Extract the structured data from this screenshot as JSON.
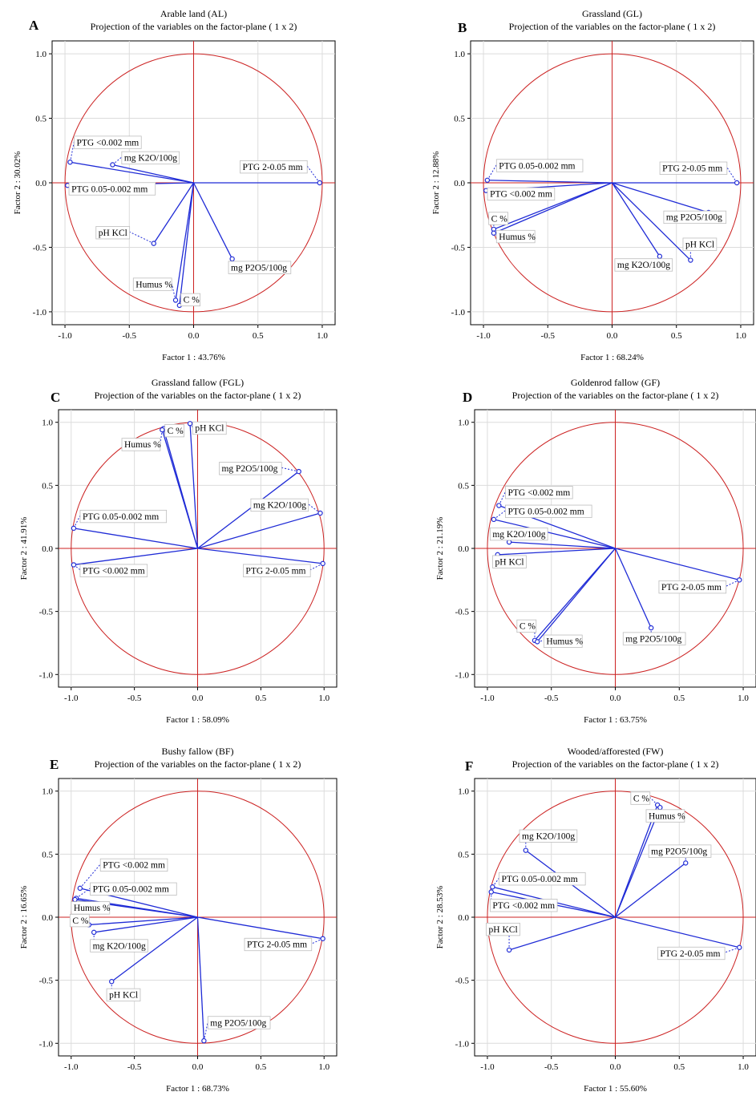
{
  "chart_data": [
    {
      "type": "scatter",
      "letter": "A",
      "title": "Arable land (AL)",
      "subtitle": "Projection of the variables on the factor-plane ( 1 x 2)",
      "xlabel": "Factor 1 : 43.76%",
      "ylabel": "Factor 2 : 30.02%",
      "xlim": [
        -1.1,
        1.1
      ],
      "ylim": [
        -1.1,
        1.1
      ],
      "xticks": [
        "-1.0",
        "-0.5",
        "0.0",
        "0.5",
        "1.0"
      ],
      "yticks": [
        "1.0",
        "0.5",
        "0.0",
        "-0.5",
        "-1.0"
      ],
      "grid": true,
      "points": [
        {
          "label": "PTG <0.002 mm",
          "x": -0.96,
          "y": 0.16,
          "label_x": -0.91,
          "label_y": 0.29
        },
        {
          "label": "mg K2O/100g",
          "x": -0.63,
          "y": 0.14,
          "label_x": -0.54,
          "label_y": 0.17
        },
        {
          "label": "PTG 0.05-0.002 mm",
          "x": -0.98,
          "y": -0.02,
          "label_x": -0.95,
          "label_y": -0.07
        },
        {
          "label": "PTG 2-0.05 mm",
          "x": 0.98,
          "y": 0.0,
          "label_x": 0.38,
          "label_y": 0.1
        },
        {
          "label": "pH KCl",
          "x": -0.31,
          "y": -0.47,
          "label_x": -0.74,
          "label_y": -0.41
        },
        {
          "label": "mg P2O5/100g",
          "x": 0.3,
          "y": -0.59,
          "label_x": 0.29,
          "label_y": -0.68
        },
        {
          "label": "Humus %",
          "x": -0.14,
          "y": -0.91,
          "label_x": -0.45,
          "label_y": -0.81
        },
        {
          "label": "C %",
          "x": -0.11,
          "y": -0.95,
          "label_x": -0.08,
          "label_y": -0.93
        }
      ]
    },
    {
      "type": "scatter",
      "letter": "B",
      "title": "Grassland (GL)",
      "subtitle": "Projection of the variables on the factor-plane ( 1 x 2)",
      "xlabel": "Factor 1 : 68.24%",
      "ylabel": "Factor 2 : 12.88%",
      "xlim": [
        -1.1,
        1.1
      ],
      "ylim": [
        -1.1,
        1.1
      ],
      "xticks": [
        "-1.0",
        "-0.5",
        "0.0",
        "0.5",
        "1.0"
      ],
      "yticks": [
        "1.0",
        "0.5",
        "0.0",
        "-0.5",
        "-1.0"
      ],
      "grid": true,
      "points": [
        {
          "label": "PTG 0.05-0.002 mm",
          "x": -0.97,
          "y": 0.02,
          "label_x": -0.88,
          "label_y": 0.11
        },
        {
          "label": "PTG <0.002 mm",
          "x": -0.98,
          "y": -0.06,
          "label_x": -0.95,
          "label_y": -0.11
        },
        {
          "label": "C %",
          "x": -0.92,
          "y": -0.36,
          "label_x": -0.94,
          "label_y": -0.3
        },
        {
          "label": "Humus %",
          "x": -0.92,
          "y": -0.39,
          "label_x": -0.88,
          "label_y": -0.44
        },
        {
          "label": "PTG 2-0.05 mm",
          "x": 0.97,
          "y": 0.0,
          "label_x": 0.39,
          "label_y": 0.09
        },
        {
          "label": "mg P2O5/100g",
          "x": 0.75,
          "y": -0.23,
          "label_x": 0.42,
          "label_y": -0.29
        },
        {
          "label": "pH KCl",
          "x": 0.61,
          "y": -0.6,
          "label_x": 0.57,
          "label_y": -0.5
        },
        {
          "label": "mg K2O/100g",
          "x": 0.37,
          "y": -0.57,
          "label_x": 0.04,
          "label_y": -0.66
        }
      ]
    },
    {
      "type": "scatter",
      "letter": "C",
      "title": "Grassland fallow (FGL)",
      "subtitle": "Projection of the variables on the factor-plane ( 1 x 2)",
      "xlabel": "Factor 1 : 58.09%",
      "ylabel": "Factor 2 : 41.91%",
      "xlim": [
        -1.1,
        1.1
      ],
      "ylim": [
        -1.1,
        1.1
      ],
      "xticks": [
        "-1.0",
        "-0.5",
        "0.0",
        "0.5",
        "1.0"
      ],
      "yticks": [
        "1.0",
        "0.5",
        "0.0",
        "-0.5",
        "-1.0"
      ],
      "grid": true,
      "points": [
        {
          "label": "pH KCl",
          "x": -0.06,
          "y": 0.99,
          "label_x": -0.02,
          "label_y": 0.93
        },
        {
          "label": "C %",
          "x": -0.27,
          "y": 0.95,
          "label_x": -0.24,
          "label_y": 0.91
        },
        {
          "label": "Humus %",
          "x": -0.28,
          "y": 0.94,
          "label_x": -0.58,
          "label_y": 0.8
        },
        {
          "label": "mg P2O5/100g",
          "x": 0.8,
          "y": 0.61,
          "label_x": 0.19,
          "label_y": 0.61
        },
        {
          "label": "mg K2O/100g",
          "x": 0.97,
          "y": 0.28,
          "label_x": 0.44,
          "label_y": 0.32
        },
        {
          "label": "PTG 0.05-0.002 mm",
          "x": -0.98,
          "y": 0.16,
          "label_x": -0.91,
          "label_y": 0.23
        },
        {
          "label": "PTG <0.002 mm",
          "x": -0.98,
          "y": -0.13,
          "label_x": -0.91,
          "label_y": -0.2
        },
        {
          "label": "PTG 2-0.05 mm",
          "x": 0.99,
          "y": -0.12,
          "label_x": 0.38,
          "label_y": -0.2
        }
      ]
    },
    {
      "type": "scatter",
      "letter": "D",
      "title": "Goldenrod fallow (GF)",
      "subtitle": "Projection of the variables on the factor-plane ( 1 x 2)",
      "xlabel": "Factor 1 : 63.75%",
      "ylabel": "Factor 2 : 21.19%",
      "xlim": [
        -1.1,
        1.1
      ],
      "ylim": [
        -1.1,
        1.1
      ],
      "xticks": [
        "-1.0",
        "-0.5",
        "0.0",
        "0.5",
        "1.0"
      ],
      "yticks": [
        "1.0",
        "0.5",
        "0.0",
        "-0.5",
        "-1.0"
      ],
      "grid": true,
      "points": [
        {
          "label": "PTG <0.002 mm",
          "x": -0.91,
          "y": 0.34,
          "label_x": -0.84,
          "label_y": 0.42
        },
        {
          "label": "PTG 0.05-0.002 mm",
          "x": -0.95,
          "y": 0.23,
          "label_x": -0.84,
          "label_y": 0.27
        },
        {
          "label": "mg K2O/100g",
          "x": -0.83,
          "y": 0.05,
          "label_x": -0.96,
          "label_y": 0.09
        },
        {
          "label": "pH KCl",
          "x": -0.92,
          "y": -0.05,
          "label_x": -0.94,
          "label_y": -0.13
        },
        {
          "label": "PTG 2-0.05 mm",
          "x": 0.97,
          "y": -0.25,
          "label_x": 0.36,
          "label_y": -0.33
        },
        {
          "label": "C %",
          "x": -0.63,
          "y": -0.73,
          "label_x": -0.75,
          "label_y": -0.64
        },
        {
          "label": "Humus %",
          "x": -0.61,
          "y": -0.74,
          "label_x": -0.54,
          "label_y": -0.76
        },
        {
          "label": "mg P2O5/100g",
          "x": 0.28,
          "y": -0.63,
          "label_x": 0.08,
          "label_y": -0.74
        }
      ]
    },
    {
      "type": "scatter",
      "letter": "E",
      "title": "Bushy fallow (BF)",
      "subtitle": "Projection of the variables on the factor-plane ( 1 x 2)",
      "xlabel": "Factor 1 : 68.73%",
      "ylabel": "Factor 2 : 16.65%",
      "xlim": [
        -1.1,
        1.1
      ],
      "ylim": [
        -1.1,
        1.1
      ],
      "xticks": [
        "-1.0",
        "-0.5",
        "0.0",
        "0.5",
        "1.0"
      ],
      "yticks": [
        "1.0",
        "0.5",
        "0.0",
        "-0.5",
        "-1.0"
      ],
      "grid": true,
      "points": [
        {
          "label": "PTG <0.002 mm",
          "x": -0.93,
          "y": 0.23,
          "label_x": -0.75,
          "label_y": 0.39
        },
        {
          "label": "PTG 0.05-0.002 mm",
          "x": -0.96,
          "y": 0.15,
          "label_x": -0.83,
          "label_y": 0.2
        },
        {
          "label": "Humus %",
          "x": -0.97,
          "y": 0.14,
          "label_x": -0.98,
          "label_y": 0.05
        },
        {
          "label": "C %",
          "x": -0.86,
          "y": -0.06,
          "label_x": -0.99,
          "label_y": -0.05
        },
        {
          "label": "mg K2O/100g",
          "x": -0.82,
          "y": -0.12,
          "label_x": -0.83,
          "label_y": -0.25
        },
        {
          "label": "pH KCl",
          "x": -0.68,
          "y": -0.51,
          "label_x": -0.7,
          "label_y": -0.64
        },
        {
          "label": "PTG 2-0.05 mm",
          "x": 0.99,
          "y": -0.17,
          "label_x": 0.39,
          "label_y": -0.24
        },
        {
          "label": "mg P2O5/100g",
          "x": 0.05,
          "y": -0.98,
          "label_x": 0.1,
          "label_y": -0.86
        }
      ]
    },
    {
      "type": "scatter",
      "letter": "F",
      "title": "Wooded/afforested (FW)",
      "subtitle": "Projection of the variables on the factor-plane ( 1 x 2)",
      "xlabel": "Factor 1 : 55.60%",
      "ylabel": "Factor 2 : 28.53%",
      "xlim": [
        -1.1,
        1.1
      ],
      "ylim": [
        -1.1,
        1.1
      ],
      "xticks": [
        "-1.0",
        "-0.5",
        "0.0",
        "0.5",
        "1.0"
      ],
      "yticks": [
        "1.0",
        "0.5",
        "0.0",
        "-0.5",
        "-1.0"
      ],
      "grid": true,
      "points": [
        {
          "label": "C %",
          "x": 0.33,
          "y": 0.89,
          "label_x": 0.14,
          "label_y": 0.92
        },
        {
          "label": "Humus %",
          "x": 0.35,
          "y": 0.87,
          "label_x": 0.26,
          "label_y": 0.78
        },
        {
          "label": "mg K2O/100g",
          "x": -0.7,
          "y": 0.53,
          "label_x": -0.73,
          "label_y": 0.62
        },
        {
          "label": "mg P2O5/100g",
          "x": 0.55,
          "y": 0.43,
          "label_x": 0.28,
          "label_y": 0.5
        },
        {
          "label": "PTG 0.05-0.002 mm",
          "x": -0.96,
          "y": 0.24,
          "label_x": -0.89,
          "label_y": 0.28
        },
        {
          "label": "PTG <0.002 mm",
          "x": -0.97,
          "y": 0.2,
          "label_x": -0.96,
          "label_y": 0.07
        },
        {
          "label": "pH KCl",
          "x": -0.83,
          "y": -0.26,
          "label_x": -0.99,
          "label_y": -0.12
        },
        {
          "label": "PTG 2-0.05 mm",
          "x": 0.97,
          "y": -0.24,
          "label_x": 0.35,
          "label_y": -0.31
        }
      ]
    }
  ]
}
